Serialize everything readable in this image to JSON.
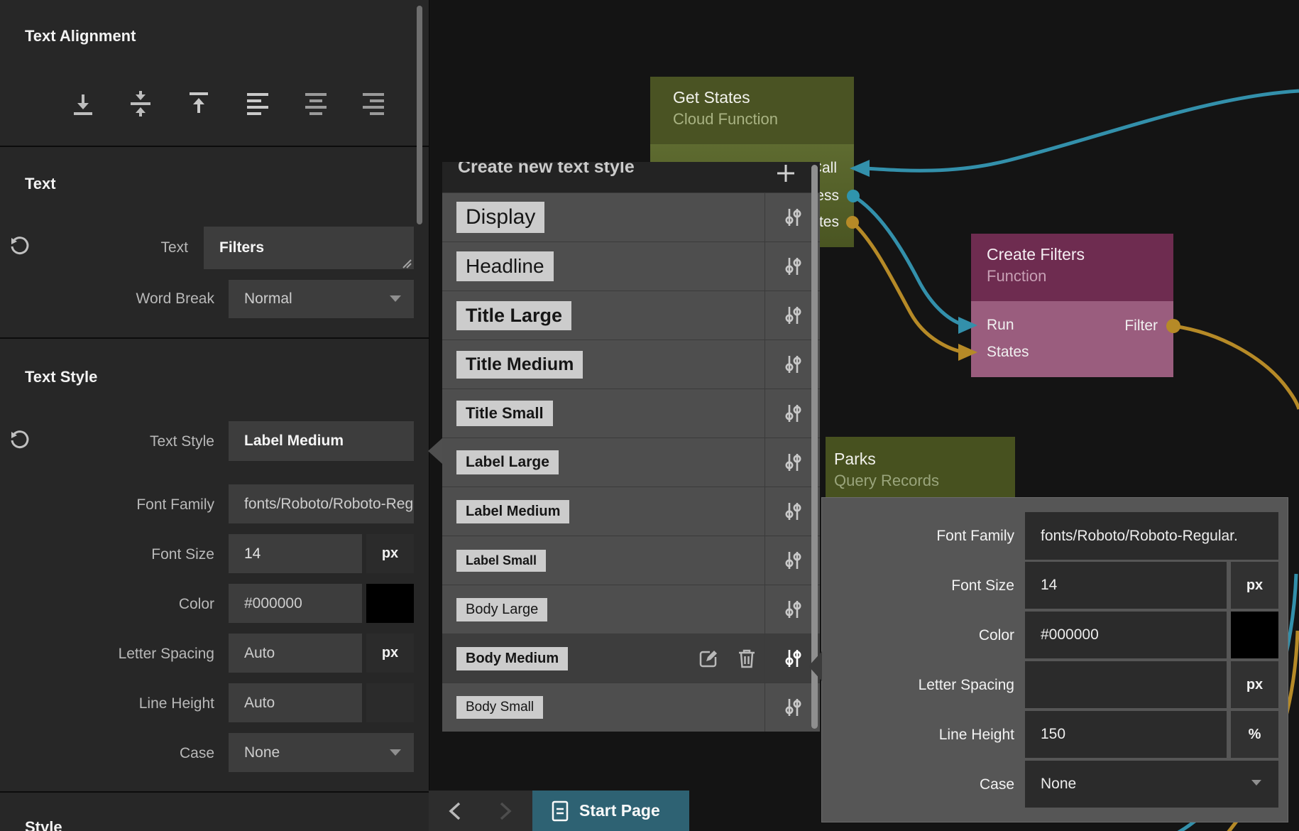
{
  "left_panel": {
    "text_alignment": {
      "title": "Text Alignment",
      "icons": [
        "vertical-align-bottom-icon",
        "vertical-align-center-icon",
        "vertical-align-top-icon",
        "align-left-icon",
        "align-center-icon",
        "align-right-icon"
      ]
    },
    "text_section": {
      "title": "Text",
      "text_row": {
        "label": "Text",
        "value": "Filters"
      },
      "word_break_row": {
        "label": "Word Break",
        "value": "Normal"
      }
    },
    "text_style_section": {
      "title": "Text Style",
      "text_style_row": {
        "label": "Text Style",
        "value": "Label Medium"
      },
      "font_family_row": {
        "label": "Font Family",
        "value": "fonts/Roboto/Roboto-Regular."
      },
      "font_size_row": {
        "label": "Font Size",
        "value": "14",
        "unit": "px"
      },
      "color_row": {
        "label": "Color",
        "value": "#000000",
        "swatch": "#000000"
      },
      "letter_spacing_row": {
        "label": "Letter Spacing",
        "value": "Auto",
        "unit": "px"
      },
      "line_height_row": {
        "label": "Line Height",
        "value": "Auto",
        "unit": ""
      },
      "case_row": {
        "label": "Case",
        "value": "None"
      }
    },
    "style_section": {
      "title": "Style"
    }
  },
  "style_popup": {
    "title": "Create new text style",
    "add_icon": "plus-icon",
    "items": [
      {
        "name": "Display",
        "size": 30,
        "weight": 400,
        "selected": false
      },
      {
        "name": "Headline",
        "size": 28,
        "weight": 400,
        "selected": false
      },
      {
        "name": "Title Large",
        "size": 27,
        "weight": 700,
        "selected": false
      },
      {
        "name": "Title Medium",
        "size": 25,
        "weight": 700,
        "selected": false
      },
      {
        "name": "Title Small",
        "size": 22,
        "weight": 700,
        "selected": false
      },
      {
        "name": "Label Large",
        "size": 21,
        "weight": 700,
        "selected": false
      },
      {
        "name": "Label Medium",
        "size": 20,
        "weight": 700,
        "selected": false
      },
      {
        "name": "Label Small",
        "size": 18,
        "weight": 700,
        "selected": false
      },
      {
        "name": "Body Large",
        "size": 20,
        "weight": 400,
        "selected": false
      },
      {
        "name": "Body Medium",
        "size": 20,
        "weight": 700,
        "selected": true
      },
      {
        "name": "Body Small",
        "size": 19,
        "weight": 500,
        "selected": false
      }
    ]
  },
  "canvas": {
    "get_states_node": {
      "title": "Get States",
      "subtitle": "Cloud Function",
      "in_port": "Call",
      "out_ports": [
        "Success",
        "States"
      ],
      "header_color": "#4a5323",
      "body_color": "#56632b"
    },
    "create_filters_node": {
      "title": "Create Filters",
      "subtitle": "Function",
      "in_ports": [
        "Run",
        "States"
      ],
      "out_port": "Filter",
      "header_color": "#6e2c50",
      "body_color": "#9a5d7e"
    },
    "parks_node": {
      "title": "Parks",
      "subtitle": "Query Records",
      "header_color": "#47511f"
    },
    "wire_colors": {
      "exec": "#3390ab",
      "data": "#b68a27"
    }
  },
  "preview_panel": {
    "font_family_row": {
      "label": "Font Family",
      "value": "fonts/Roboto/Roboto-Regular."
    },
    "font_size_row": {
      "label": "Font Size",
      "value": "14",
      "unit": "px"
    },
    "color_row": {
      "label": "Color",
      "value": "#000000",
      "swatch": "#000000"
    },
    "letter_spacing_row": {
      "label": "Letter Spacing",
      "value": "",
      "unit": "px"
    },
    "line_height_row": {
      "label": "Line Height",
      "value": "150",
      "unit": "%"
    },
    "case_row": {
      "label": "Case",
      "value": "None"
    }
  },
  "bottom_bar": {
    "back_icon": "chevron-left-icon",
    "forward_icon": "chevron-right-icon",
    "tab": {
      "label": "Start Page",
      "icon": "page-icon",
      "color": "#2e6273"
    }
  }
}
